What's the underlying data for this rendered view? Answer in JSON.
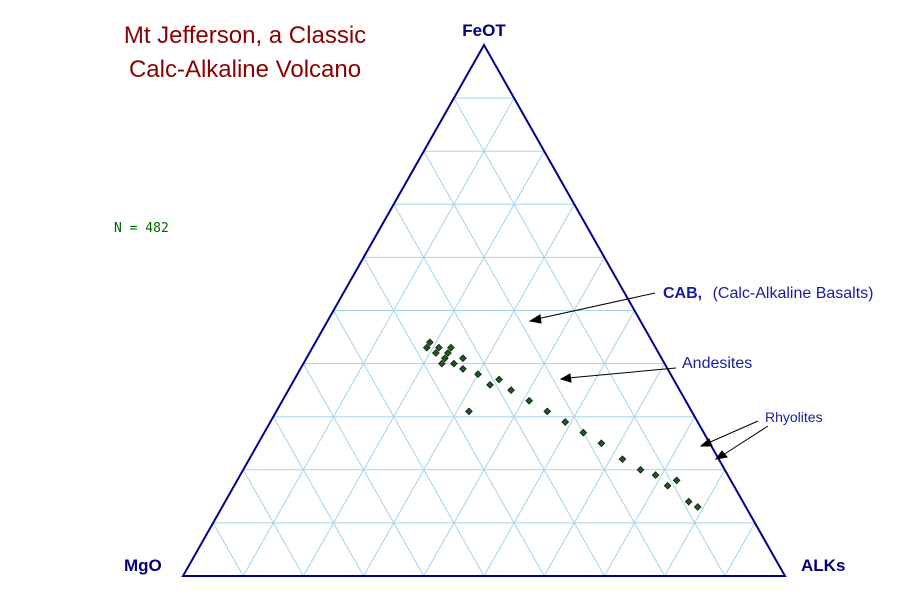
{
  "chart_data": {
    "type": "scatter",
    "subtype": "ternary",
    "title_lines": [
      "Mt Jefferson, a Classic",
      "Calc-Alkaline Volcano"
    ],
    "vertices": {
      "top": "FeOT",
      "left": "MgO",
      "right": "ALKs"
    },
    "n_label": "N = 482",
    "grid": true,
    "grid_divisions": 10,
    "annotations": {
      "cab_bold": "CAB,",
      "cab_rest": "(Calc-Alkaline Basalts)",
      "andesites": "Andesites",
      "rhyolites": "Rhyolites"
    },
    "colors": {
      "marker": "#1e5a1e",
      "grid": "#a6d3ef",
      "triangle": "#00008b",
      "title": "#8b0000"
    },
    "points_count": 482,
    "points": [
      {
        "FeOT": 43,
        "MgO": 38,
        "ALKs": 19
      },
      {
        "FeOT": 43,
        "MgO": 36,
        "ALKs": 21
      },
      {
        "FeOT": 42,
        "MgO": 37,
        "ALKs": 21
      },
      {
        "FeOT": 44,
        "MgO": 37,
        "ALKs": 19
      },
      {
        "FeOT": 41,
        "MgO": 36,
        "ALKs": 23
      },
      {
        "FeOT": 40,
        "MgO": 37,
        "ALKs": 23
      },
      {
        "FeOT": 42,
        "MgO": 35,
        "ALKs": 23
      },
      {
        "FeOT": 43,
        "MgO": 34,
        "ALKs": 23
      },
      {
        "FeOT": 40,
        "MgO": 35,
        "ALKs": 25
      },
      {
        "FeOT": 39,
        "MgO": 34,
        "ALKs": 27
      },
      {
        "FeOT": 41,
        "MgO": 33,
        "ALKs": 26
      },
      {
        "FeOT": 38,
        "MgO": 32,
        "ALKs": 30
      },
      {
        "FeOT": 36,
        "MgO": 31,
        "ALKs": 33
      },
      {
        "FeOT": 37,
        "MgO": 29,
        "ALKs": 34
      },
      {
        "FeOT": 35,
        "MgO": 28,
        "ALKs": 37
      },
      {
        "FeOT": 33,
        "MgO": 26,
        "ALKs": 41
      },
      {
        "FeOT": 31,
        "MgO": 24,
        "ALKs": 45
      },
      {
        "FeOT": 29,
        "MgO": 22,
        "ALKs": 49
      },
      {
        "FeOT": 27,
        "MgO": 20,
        "ALKs": 53
      },
      {
        "FeOT": 25,
        "MgO": 18,
        "ALKs": 57
      },
      {
        "FeOT": 22,
        "MgO": 16,
        "ALKs": 62
      },
      {
        "FeOT": 20,
        "MgO": 14,
        "ALKs": 66
      },
      {
        "FeOT": 19,
        "MgO": 12,
        "ALKs": 69
      },
      {
        "FeOT": 17,
        "MgO": 11,
        "ALKs": 72
      },
      {
        "FeOT": 14,
        "MgO": 9,
        "ALKs": 77
      },
      {
        "FeOT": 13,
        "MgO": 8,
        "ALKs": 79
      },
      {
        "FeOT": 18,
        "MgO": 9,
        "ALKs": 73
      },
      {
        "FeOT": 31,
        "MgO": 37,
        "ALKs": 32
      }
    ]
  }
}
